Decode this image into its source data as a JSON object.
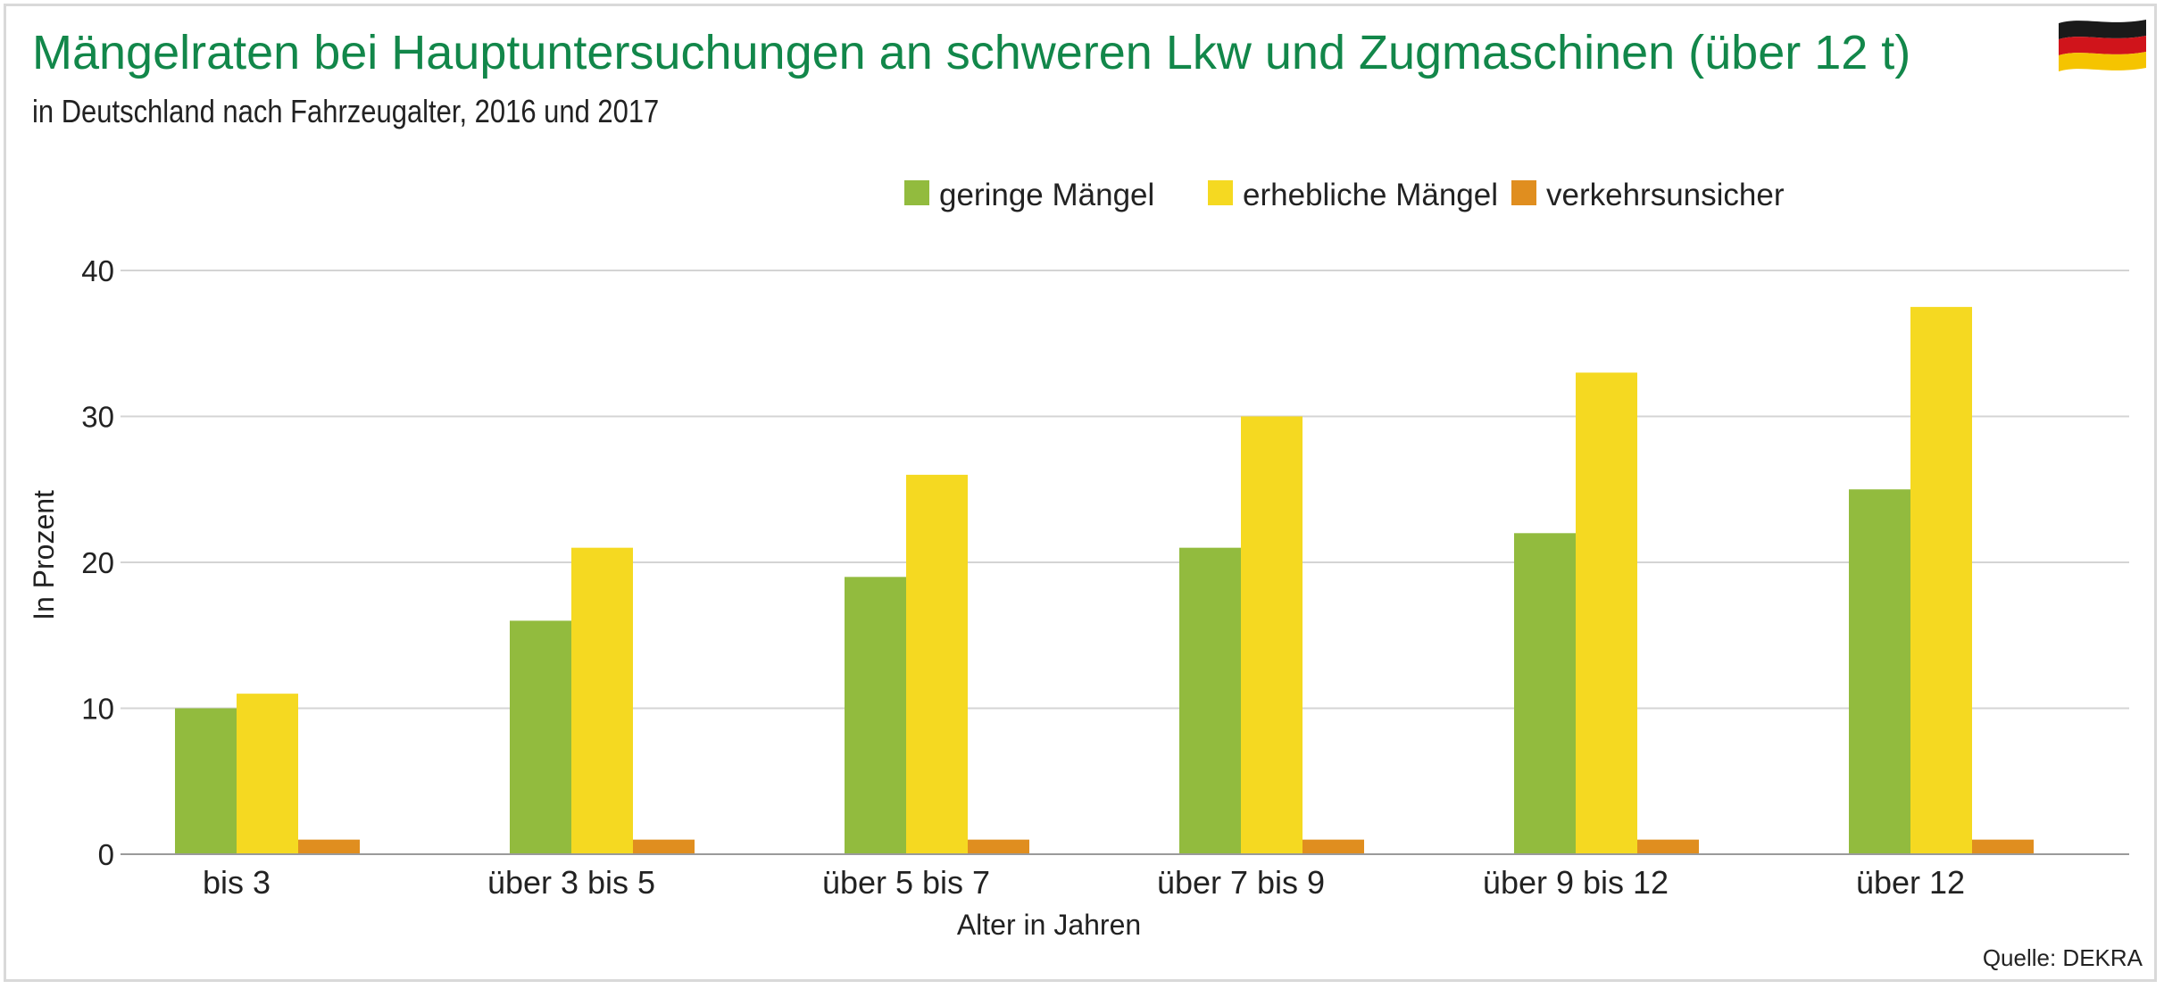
{
  "header": {
    "title": "Mängelraten bei Hauptuntersuchungen an schweren Lkw und Zugmaschinen (über 12 t)",
    "subtitle": "in Deutschland nach Fahrzeugalter, 2016 und 2017",
    "flag_icon": "germany-flag-icon"
  },
  "source": "Quelle: DEKRA",
  "colors": {
    "title": "#12874a",
    "geringe": "#92bb3e",
    "erhebliche": "#f5d921",
    "verkehrsunsicher": "#e08e1f",
    "grid": "#d4d4d4"
  },
  "chart_data": {
    "type": "bar",
    "categories": [
      "bis 3",
      "über 3 bis 5",
      "über 5 bis 7",
      "über 7 bis 9",
      "über 9 bis 12",
      "über 12"
    ],
    "series": [
      {
        "name": "geringe Mängel",
        "color": "#92bb3e",
        "values": [
          10,
          16,
          19,
          21,
          22,
          25
        ]
      },
      {
        "name": "erhebliche Mängel",
        "color": "#f5d921",
        "values": [
          11,
          21,
          26,
          30,
          33,
          37.5
        ]
      },
      {
        "name": "verkehrsunsicher",
        "color": "#e08e1f",
        "values": [
          1,
          1,
          1,
          1,
          1,
          1
        ]
      }
    ],
    "xlabel": "Alter in Jahren",
    "ylabel": "In Prozent",
    "ylim": [
      0,
      40
    ],
    "yticks": [
      0,
      10,
      20,
      30,
      40
    ],
    "grid": true,
    "legend_position": "top-center"
  }
}
